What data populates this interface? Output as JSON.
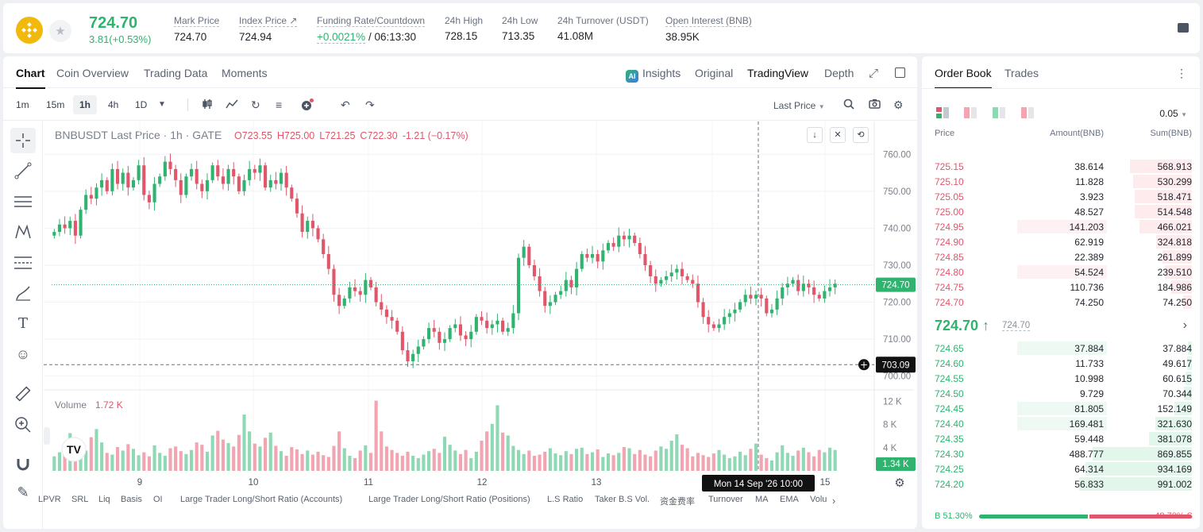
{
  "header": {
    "price": "724.70",
    "change": "3.81(+0.53%)",
    "stats": [
      {
        "label": "Mark Price",
        "value": "724.70"
      },
      {
        "label": "Index Price ↗",
        "value": "724.94"
      },
      {
        "label": "Funding Rate/Countdown",
        "value_green": "+0.0021%",
        "value_rest": "/ 06:13:30"
      },
      {
        "label": "24h High",
        "value": "728.15"
      },
      {
        "label": "24h Low",
        "value": "713.35"
      },
      {
        "label": "24h Turnover (USDT)",
        "value": "41.08M"
      },
      {
        "label": "Open Interest (BNB)",
        "value": "38.95K"
      }
    ]
  },
  "chart_tabs": {
    "chart": "Chart",
    "coin_overview": "Coin Overview",
    "trading_data": "Trading Data",
    "moments": "Moments",
    "insights": "Insights",
    "original": "Original",
    "tradingview": "TradingView",
    "depth": "Depth"
  },
  "timeframes": [
    "1m",
    "15m",
    "1h",
    "4h",
    "1D"
  ],
  "last_price_select": "Last Price",
  "chart_header": {
    "title": "BNBUSDT Last Price · 1h · GATE",
    "o": "O723.55",
    "h": "H725.00",
    "l": "L721.25",
    "c": "C722.30",
    "chg": "-1.21 (−0.17%)"
  },
  "volume_label": "Volume",
  "volume_value": "1.72 K",
  "chart_data": {
    "type": "candlestick",
    "symbol": "BNBUSDT",
    "interval": "1h",
    "ylim": [
      698,
      765
    ],
    "y_ticks": [
      "760.00",
      "750.00",
      "740.00",
      "730.00",
      "720.00",
      "710.00",
      "700.00"
    ],
    "x_ticks": [
      "9",
      "10",
      "11",
      "12",
      "13",
      "14",
      "15"
    ],
    "last_price": "724.70",
    "crosshair_price": "703.09",
    "crosshair_time": "Mon 14 Sep '26   10:00",
    "volume_ticks": [
      "12 K",
      "8 K",
      "4 K"
    ],
    "volume_last": "1.34 K",
    "closes": [
      739,
      741,
      740,
      742,
      738,
      745,
      749,
      748,
      751,
      753,
      750,
      756,
      752,
      755,
      751,
      753,
      757,
      749,
      747,
      752,
      754,
      758,
      756,
      753,
      749,
      754,
      756,
      752,
      750,
      753,
      757,
      754,
      752,
      756,
      754,
      750,
      753,
      756,
      755,
      757,
      751,
      753,
      752,
      755,
      751,
      748,
      744,
      739,
      742,
      740,
      737,
      733,
      729,
      722,
      719,
      721,
      724,
      723,
      722,
      726,
      724,
      720,
      718,
      716,
      715,
      712,
      707,
      704,
      706,
      708,
      710,
      713,
      712,
      709,
      710,
      713,
      714,
      711,
      710,
      712,
      716,
      715,
      713,
      714,
      715,
      712,
      713,
      717,
      732,
      735,
      730,
      727,
      723,
      719,
      720,
      722,
      723,
      726,
      724,
      729,
      733,
      732,
      733,
      731,
      734,
      736,
      735,
      738,
      737,
      738,
      736,
      733,
      730,
      727,
      725,
      726,
      727,
      728,
      729,
      727,
      726,
      725,
      720,
      716,
      714,
      713,
      714,
      716,
      717,
      718,
      720,
      722,
      721,
      722,
      721,
      717,
      718,
      721,
      724,
      725,
      726,
      723,
      725,
      724,
      722,
      721,
      723,
      724,
      725
    ],
    "volumes": [
      2.5,
      3.2,
      4.5,
      6.5,
      5.1,
      4.2,
      3.5,
      5.8,
      7.2,
      4.9,
      3.1,
      2.8,
      4.1,
      3.5,
      4.6,
      3.8,
      2.7,
      3.2,
      2.5,
      4.4,
      3.1,
      2.6,
      3.9,
      4.2,
      3.4,
      2.9,
      3.6,
      4.9,
      4.5,
      3.3,
      6.1,
      6.9,
      5.4,
      4.8,
      4.2,
      6.2,
      9.7,
      6.8,
      4.7,
      4.2,
      5.7,
      6.6,
      4.3,
      3.4,
      2.6,
      4.1,
      3.7,
      2.9,
      3.5,
      2.8,
      3.3,
      2.7,
      2.4,
      4.3,
      6.8,
      3.9,
      2.6,
      2.2,
      3.5,
      4.4,
      3.1,
      12.1,
      6.8,
      4.2,
      3.6,
      3.1,
      2.6,
      3.3,
      2.6,
      2.2,
      2.8,
      3.4,
      3.8,
      3.1,
      5.9,
      4.5,
      3.5,
      2.9,
      3.6,
      2.2,
      3.3,
      5.2,
      6.8,
      8.1,
      11.3,
      6.6,
      6.1,
      4.3,
      3.6,
      2.9,
      3.5,
      2.6,
      2.8,
      3.3,
      3.9,
      3.0,
      2.7,
      3.4,
      2.9,
      3.8,
      4.0,
      2.9,
      3.2,
      3.7,
      2.4,
      3.0,
      2.7,
      3.1,
      4.1,
      3.9,
      2.9,
      3.6,
      2.8,
      2.5,
      3.5,
      4.2,
      3.8,
      5.2,
      6.3,
      4.5,
      3.9,
      2.5,
      3.1,
      2.7,
      2.4,
      3.0,
      3.6,
      2.8,
      2.2,
      2.5,
      3.3,
      2.7,
      3.8,
      4.7,
      2.8,
      2.2,
      1.8,
      3.2,
      4.4,
      3.1,
      2.6,
      3.5,
      4.0,
      3.2,
      2.5,
      3.6,
      3.2,
      4.0,
      3.6,
      2.9,
      2.2,
      1.6,
      1.34
    ]
  },
  "indicators": [
    "LPVR",
    "SRL",
    "Liq",
    "Basis",
    "OI",
    "Large Trader Long/Short Ratio (Accounts)",
    "Large Trader Long/Short Ratio (Positions)",
    "L.S Ratio",
    "Taker B.S Vol.",
    "资金费率",
    "Turnover",
    "MA",
    "EMA",
    "Volu"
  ],
  "orderbook": {
    "tab_book": "Order Book",
    "tab_trades": "Trades",
    "tick": "0.05",
    "headers": {
      "price": "Price",
      "amount": "Amount(BNB)",
      "sum": "Sum(BNB)"
    },
    "asks": [
      {
        "price": "725.15",
        "amount": "38.614",
        "sum": "568.913",
        "a_frac": 0.0,
        "s_frac": 0.49
      },
      {
        "price": "725.10",
        "amount": "11.828",
        "sum": "530.299",
        "a_frac": 0.0,
        "s_frac": 0.46
      },
      {
        "price": "725.05",
        "amount": "3.923",
        "sum": "518.471",
        "a_frac": 0.0,
        "s_frac": 0.45
      },
      {
        "price": "725.00",
        "amount": "48.527",
        "sum": "514.548",
        "a_frac": 0.0,
        "s_frac": 0.45
      },
      {
        "price": "724.95",
        "amount": "141.203",
        "sum": "466.021",
        "a_frac": 0.37,
        "s_frac": 0.41
      },
      {
        "price": "724.90",
        "amount": "62.919",
        "sum": "324.818",
        "a_frac": 0.0,
        "s_frac": 0.28
      },
      {
        "price": "724.85",
        "amount": "22.389",
        "sum": "261.899",
        "a_frac": 0.0,
        "s_frac": 0.23
      },
      {
        "price": "724.80",
        "amount": "54.524",
        "sum": "239.510",
        "a_frac": 0.15,
        "s_frac": 0.21
      },
      {
        "price": "724.75",
        "amount": "110.736",
        "sum": "184.986",
        "a_frac": 0.0,
        "s_frac": 0.16
      },
      {
        "price": "724.70",
        "amount": "74.250",
        "sum": "74.250",
        "a_frac": 0.0,
        "s_frac": 0.07
      }
    ],
    "mid_price": "724.70 ↑",
    "mid_mark": "724.70",
    "bids": [
      {
        "price": "724.65",
        "amount": "37.884",
        "sum": "37.884",
        "a_frac": 0.33,
        "s_frac": 0.03
      },
      {
        "price": "724.60",
        "amount": "11.733",
        "sum": "49.617",
        "a_frac": 0.0,
        "s_frac": 0.04
      },
      {
        "price": "724.55",
        "amount": "10.998",
        "sum": "60.615",
        "a_frac": 0.0,
        "s_frac": 0.05
      },
      {
        "price": "724.50",
        "amount": "9.729",
        "sum": "70.344",
        "a_frac": 0.0,
        "s_frac": 0.06
      },
      {
        "price": "724.45",
        "amount": "81.805",
        "sum": "152.149",
        "a_frac": 0.33,
        "s_frac": 0.14
      },
      {
        "price": "724.40",
        "amount": "169.481",
        "sum": "321.630",
        "a_frac": 0.37,
        "s_frac": 0.29
      },
      {
        "price": "724.35",
        "amount": "59.448",
        "sum": "381.078",
        "a_frac": 0.0,
        "s_frac": 0.34
      },
      {
        "price": "724.30",
        "amount": "488.777",
        "sum": "869.855",
        "a_frac": 0.0,
        "s_frac": 0.78
      },
      {
        "price": "724.25",
        "amount": "64.314",
        "sum": "934.169",
        "a_frac": 0.0,
        "s_frac": 0.84
      },
      {
        "price": "724.20",
        "amount": "56.833",
        "sum": "991.002",
        "a_frac": 0.0,
        "s_frac": 0.89
      }
    ],
    "buy_ratio": "B 51.30%",
    "sell_ratio": "48.70% S",
    "buy_frac": 0.513
  },
  "colors": {
    "up": "#2fb36f",
    "down": "#e0566b",
    "up_vol": "#8fd8b4",
    "down_vol": "#f3a4b1"
  }
}
